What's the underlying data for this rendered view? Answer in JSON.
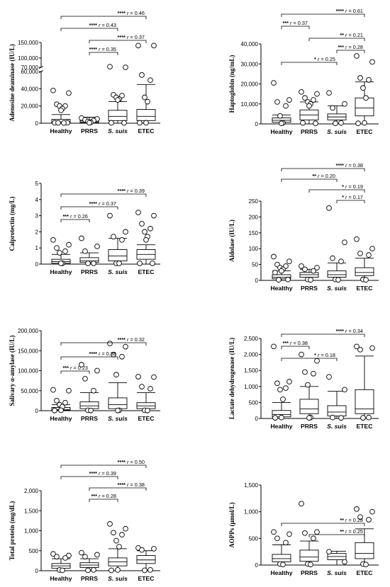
{
  "chart_data": [
    {
      "type": "box",
      "ylabel": "Adenosine deaminase (IU/L)",
      "categories": [
        "Healthy",
        "PRRS",
        "S. suis",
        "ETEC"
      ],
      "yticks": [
        "0",
        "20,000",
        "40,000",
        "60,000",
        "70,000",
        "100,000",
        "150,000"
      ],
      "ylim": [
        0,
        150000
      ],
      "axis_break": [
        60000,
        70000
      ],
      "boxes": [
        {
          "whisker_low": 0,
          "q1": 300,
          "median": 1500,
          "q3": 4500,
          "whisker_high": 10000,
          "outliers": [
            38000,
            35000,
            22000,
            20000,
            20000,
            17000,
            15000,
            500,
            500,
            400,
            300
          ]
        },
        {
          "whisker_low": 0,
          "q1": 500,
          "median": 1500,
          "q3": 3000,
          "whisker_high": 7000,
          "outliers": [
            6000,
            5000,
            4000,
            3000,
            2000,
            1000,
            500
          ]
        },
        {
          "whisker_low": 0,
          "q1": 3000,
          "median": 8000,
          "q3": 15000,
          "whisker_high": 25000,
          "outliers": [
            72000,
            70000,
            33000,
            32000,
            30000,
            28000,
            27000,
            500,
            400
          ]
        },
        {
          "whisker_low": 0,
          "q1": 3000,
          "median": 8000,
          "q3": 16000,
          "whisker_high": 45000,
          "outliers": [
            140000,
            140000,
            56000,
            50000,
            30000,
            25000,
            500,
            400
          ]
        }
      ],
      "comparisons": [
        {
          "from": "Healthy",
          "to": "ETEC",
          "stars": "****",
          "r": "0.46"
        },
        {
          "from": "Healthy",
          "to": "S. suis",
          "stars": "****",
          "r": "0.43"
        },
        {
          "from": "PRRS",
          "to": "ETEC",
          "stars": "****",
          "r": "0.37"
        },
        {
          "from": "PRRS",
          "to": "S. suis",
          "stars": "****",
          "r": "0.35"
        }
      ]
    },
    {
      "type": "box",
      "ylabel": "Haptoglobin (ng/mL)",
      "categories": [
        "Healthy",
        "PRRS",
        "S. suis",
        "ETEC"
      ],
      "yticks": [
        "0",
        "10,000",
        "20,000",
        "30,000",
        "40,000"
      ],
      "ylim": [
        0,
        40000
      ],
      "boxes": [
        {
          "whisker_low": 0,
          "q1": 800,
          "median": 1800,
          "q3": 3000,
          "whisker_high": 4500,
          "outliers": [
            20500,
            12000,
            11000,
            9000,
            4000,
            500,
            300
          ]
        },
        {
          "whisker_low": 0,
          "q1": 2000,
          "median": 4500,
          "q3": 7000,
          "whisker_high": 11000,
          "outliers": [
            16000,
            15000,
            13000,
            12000,
            11000,
            10000,
            9000,
            500,
            300
          ]
        },
        {
          "whisker_low": 0,
          "q1": 2000,
          "median": 3500,
          "q3": 5000,
          "whisker_high": 9000,
          "outliers": [
            15500,
            10000,
            8000,
            500,
            300
          ]
        },
        {
          "whisker_low": 0,
          "q1": 4000,
          "median": 8000,
          "q3": 13000,
          "whisker_high": 21000,
          "outliers": [
            34000,
            31000,
            23000,
            22000,
            18000,
            13000,
            500,
            300
          ]
        }
      ],
      "comparisons": [
        {
          "from": "Healthy",
          "to": "ETEC",
          "stars": "****",
          "r": "0.61"
        },
        {
          "from": "Healthy",
          "to": "PRRS",
          "stars": "***",
          "r": "0.37"
        },
        {
          "from": "PRRS",
          "to": "ETEC",
          "stars": "**",
          "r": "0.21"
        },
        {
          "from": "S. suis",
          "to": "ETEC",
          "stars": "***",
          "r": "0.28"
        },
        {
          "from": "Healthy",
          "to": "S. suis",
          "stars": "*",
          "r": "0.25"
        }
      ]
    },
    {
      "type": "box",
      "ylabel": "Calprotectin (mg/L)",
      "categories": [
        "Healthy",
        "PRRS",
        "S. suis",
        "ETEC"
      ],
      "yticks": [
        "0",
        "1",
        "2",
        "3",
        "4",
        "5"
      ],
      "ylim": [
        0,
        5
      ],
      "boxes": [
        {
          "whisker_low": 0,
          "q1": 0.05,
          "median": 0.15,
          "q3": 0.3,
          "whisker_high": 0.6,
          "outliers": [
            1.5,
            1.2,
            1.0,
            0.8,
            0.7,
            0.05,
            0.05
          ]
        },
        {
          "whisker_low": 0,
          "q1": 0.1,
          "median": 0.2,
          "q3": 0.4,
          "whisker_high": 0.7,
          "outliers": [
            1.6,
            1.1,
            0.8,
            0.05,
            0.05
          ]
        },
        {
          "whisker_low": 0,
          "q1": 0.2,
          "median": 0.5,
          "q3": 0.9,
          "whisker_high": 1.6,
          "outliers": [
            3.0,
            2.0,
            1.7,
            1.5,
            0.05,
            0.05
          ]
        },
        {
          "whisker_low": 0,
          "q1": 0.3,
          "median": 0.6,
          "q3": 0.9,
          "whisker_high": 1.2,
          "outliers": [
            3.2,
            3.0,
            2.5,
            2.2,
            2.0,
            1.7,
            1.5,
            0.05,
            0.05
          ]
        }
      ],
      "comparisons": [
        {
          "from": "Healthy",
          "to": "ETEC",
          "stars": "****",
          "r": "0.39"
        },
        {
          "from": "Healthy",
          "to": "S. suis",
          "stars": "****",
          "r": "0.37"
        },
        {
          "from": "Healthy",
          "to": "PRRS",
          "stars": "***",
          "r": "0.26"
        }
      ]
    },
    {
      "type": "box",
      "ylabel": "Aldolase (IU/L)",
      "categories": [
        "Healthy",
        "PRRS",
        "S. suis",
        "ETEC"
      ],
      "yticks": [
        "0",
        "50",
        "100",
        "150",
        "200",
        "250"
      ],
      "ylim": [
        0,
        250
      ],
      "boxes": [
        {
          "whisker_low": 0,
          "q1": 5,
          "median": 10,
          "q3": 18,
          "whisker_high": 30,
          "outliers": [
            75,
            60,
            50,
            45,
            40,
            35,
            30,
            25,
            3,
            2
          ]
        },
        {
          "whisker_low": 0,
          "q1": 10,
          "median": 18,
          "q3": 25,
          "whisker_high": 35,
          "outliers": [
            45,
            40,
            35,
            30,
            3,
            2
          ]
        },
        {
          "whisker_low": 0,
          "q1": 10,
          "median": 18,
          "q3": 30,
          "whisker_high": 55,
          "outliers": [
            228,
            120,
            70,
            60,
            3,
            2
          ]
        },
        {
          "whisker_low": 0,
          "q1": 15,
          "median": 25,
          "q3": 40,
          "whisker_high": 70,
          "outliers": [
            130,
            100,
            85,
            80,
            3,
            2
          ]
        }
      ],
      "comparisons": [
        {
          "from": "Healthy",
          "to": "ETEC",
          "stars": "****",
          "r": "0.38"
        },
        {
          "from": "Healthy",
          "to": "S. suis",
          "stars": "**",
          "r": "0.20"
        },
        {
          "from": "PRRS",
          "to": "ETEC",
          "stars": "*",
          "r": "0.19"
        },
        {
          "from": "S. suis",
          "to": "ETEC",
          "stars": "*",
          "r": "0.17"
        }
      ]
    },
    {
      "type": "box",
      "ylabel": "Salivary α-amylase (IU/L)",
      "categories": [
        "Healthy",
        "PRRS",
        "S. suis",
        "ETEC"
      ],
      "yticks": [
        "0",
        "50,000",
        "100,000",
        "150,000",
        "200,000"
      ],
      "ylim": [
        0,
        200000
      ],
      "boxes": [
        {
          "whisker_low": 0,
          "q1": 1000,
          "median": 3000,
          "q3": 8000,
          "whisker_high": 15000,
          "outliers": [
            52000,
            50000,
            25000,
            20000,
            15000,
            10000,
            1000,
            500
          ]
        },
        {
          "whisker_low": 0,
          "q1": 5000,
          "median": 12000,
          "q3": 22000,
          "whisker_high": 45000,
          "outliers": [
            115000,
            100000,
            80000,
            50000,
            1000,
            500
          ]
        },
        {
          "whisker_low": 0,
          "q1": 5000,
          "median": 15000,
          "q3": 32000,
          "whisker_high": 70000,
          "outliers": [
            168000,
            160000,
            140000,
            135000,
            90000,
            1000,
            500
          ]
        },
        {
          "whisker_low": 0,
          "q1": 5000,
          "median": 12000,
          "q3": 20000,
          "whisker_high": 45000,
          "outliers": [
            85000,
            84000,
            60000,
            55000,
            1000,
            500
          ]
        }
      ],
      "comparisons": [
        {
          "from": "Healthy",
          "to": "ETEC",
          "stars": "****",
          "r": "0.32"
        },
        {
          "from": "Healthy",
          "to": "S. suis",
          "stars": "****",
          "r": "0.38"
        },
        {
          "from": "Healthy",
          "to": "PRRS",
          "stars": "***",
          "r": "0.23"
        }
      ]
    },
    {
      "type": "box",
      "ylabel": "Lactate dehydrogenase (IU/L)",
      "categories": [
        "Healthy",
        "PRRS",
        "S. suis",
        "ETEC"
      ],
      "yticks": [
        "0",
        "500",
        "1,000",
        "1,500",
        "2,000",
        "2,500"
      ],
      "ylim": [
        0,
        2500
      ],
      "boxes": [
        {
          "whisker_low": 0,
          "q1": 50,
          "median": 120,
          "q3": 250,
          "whisker_high": 500,
          "outliers": [
            2250,
            1150,
            1100,
            950,
            900,
            600,
            30,
            20
          ]
        },
        {
          "whisker_low": 0,
          "q1": 150,
          "median": 300,
          "q3": 600,
          "whisker_high": 1000,
          "outliers": [
            2000,
            1800,
            1450,
            1400,
            1050,
            30,
            20
          ]
        },
        {
          "whisker_low": 0,
          "q1": 80,
          "median": 200,
          "q3": 400,
          "whisker_high": 850,
          "outliers": [
            1300,
            900,
            30,
            20
          ]
        },
        {
          "whisker_low": 0,
          "q1": 150,
          "median": 300,
          "q3": 900,
          "whisker_high": 1950,
          "outliers": [
            2250,
            2200,
            2150,
            30,
            20
          ]
        }
      ],
      "comparisons": [
        {
          "from": "Healthy",
          "to": "ETEC",
          "stars": "****",
          "r": "0.34"
        },
        {
          "from": "Healthy",
          "to": "PRRS",
          "stars": "***",
          "r": "0.38"
        },
        {
          "from": "Healthy",
          "to": "S. suis",
          "stars": "*",
          "r": "0.18"
        }
      ]
    },
    {
      "type": "box",
      "ylabel": "Total protein (mg/dL)",
      "categories": [
        "Healthy",
        "PRRS",
        "S. suis",
        "ETEC"
      ],
      "yticks": [
        "0",
        "500",
        "1,000",
        "1,500",
        "2,000"
      ],
      "ylim": [
        0,
        2000
      ],
      "boxes": [
        {
          "whisker_low": 0,
          "q1": 60,
          "median": 120,
          "q3": 180,
          "whisker_high": 300,
          "outliers": [
            420,
            380,
            350,
            320,
            20,
            10
          ]
        },
        {
          "whisker_low": 0,
          "q1": 80,
          "median": 140,
          "q3": 200,
          "whisker_high": 300,
          "outliers": [
            450,
            400,
            350,
            20,
            10
          ]
        },
        {
          "whisker_low": 0,
          "q1": 120,
          "median": 220,
          "q3": 320,
          "whisker_high": 550,
          "outliers": [
            1170,
            1050,
            950,
            900,
            750,
            600,
            20,
            10
          ]
        },
        {
          "whisker_low": 0,
          "q1": 180,
          "median": 270,
          "q3": 380,
          "whisker_high": 500,
          "outliers": [
            570,
            550,
            520,
            20,
            10
          ]
        }
      ],
      "comparisons": [
        {
          "from": "Healthy",
          "to": "ETEC",
          "stars": "****",
          "r": "0.50"
        },
        {
          "from": "Healthy",
          "to": "S. suis",
          "stars": "****",
          "r": "0.39"
        },
        {
          "from": "PRRS",
          "to": "ETEC",
          "stars": "****",
          "r": "0.38"
        },
        {
          "from": "PRRS",
          "to": "S. suis",
          "stars": "***",
          "r": "0.28"
        }
      ]
    },
    {
      "type": "box",
      "ylabel": "AOPPs (μmol/L)",
      "categories": [
        "Healthy",
        "PRRS",
        "S. suis",
        "ETEC"
      ],
      "yticks": [
        "0",
        "500",
        "1,000",
        "1,500"
      ],
      "ylim": [
        0,
        1500
      ],
      "boxes": [
        {
          "whisker_low": 0,
          "q1": 60,
          "median": 120,
          "q3": 200,
          "whisker_high": 380,
          "outliers": [
            620,
            580,
            500,
            420,
            20,
            10
          ]
        },
        {
          "whisker_low": 0,
          "q1": 70,
          "median": 150,
          "q3": 280,
          "whisker_high": 450,
          "outliers": [
            1150,
            620,
            600,
            500,
            20,
            10
          ]
        },
        {
          "whisker_low": 0,
          "q1": 100,
          "median": 160,
          "q3": 220,
          "whisker_high": 260,
          "outliers": [
            250,
            60
          ]
        },
        {
          "whisker_low": 0,
          "q1": 120,
          "median": 220,
          "q3": 420,
          "whisker_high": 680,
          "outliers": [
            1050,
            1000,
            900,
            850,
            20,
            10
          ]
        }
      ],
      "comparisons": [
        {
          "from": "Healthy",
          "to": "ETEC",
          "stars": "**",
          "r": "0.28"
        },
        {
          "from": "PRRS",
          "to": "ETEC",
          "stars": "**",
          "r": "0.25"
        }
      ]
    }
  ]
}
